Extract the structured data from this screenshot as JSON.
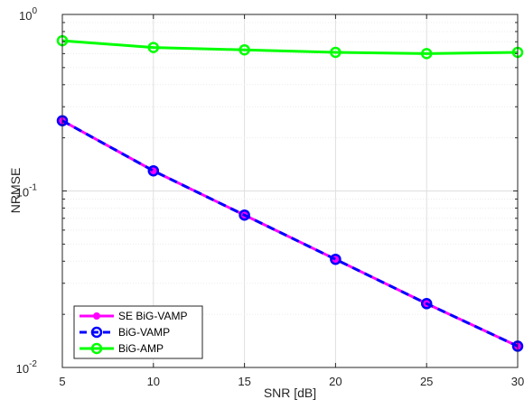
{
  "chart_data": {
    "type": "line",
    "title": "",
    "xlabel": "SNR [dB]",
    "ylabel": "NRMSE",
    "x": [
      5,
      10,
      15,
      20,
      25,
      30
    ],
    "xlim": [
      5,
      30
    ],
    "ylim": [
      0.01,
      1
    ],
    "yscale": "log",
    "grid": true,
    "legend_position": "bottom-left",
    "x_tick_labels": [
      "5",
      "10",
      "15",
      "20",
      "25",
      "30"
    ],
    "y_tick_labels": [
      {
        "base": "10",
        "exp": "-2"
      },
      {
        "base": "10",
        "exp": "-1"
      },
      {
        "base": "10",
        "exp": "0"
      }
    ],
    "series": [
      {
        "name": "SE BiG-VAMP",
        "values": [
          0.25,
          0.13,
          0.073,
          0.041,
          0.023,
          0.0132
        ],
        "color": "#ff00ff",
        "style": "solid",
        "marker": "filled-circle"
      },
      {
        "name": "BiG-VAMP",
        "values": [
          0.25,
          0.13,
          0.073,
          0.041,
          0.023,
          0.0132
        ],
        "color": "#0000ff",
        "style": "dashed",
        "marker": "open-circle"
      },
      {
        "name": "BiG-AMP",
        "values": [
          0.71,
          0.65,
          0.63,
          0.61,
          0.6,
          0.61
        ],
        "color": "#00ff00",
        "style": "solid",
        "marker": "open-circle"
      }
    ]
  }
}
